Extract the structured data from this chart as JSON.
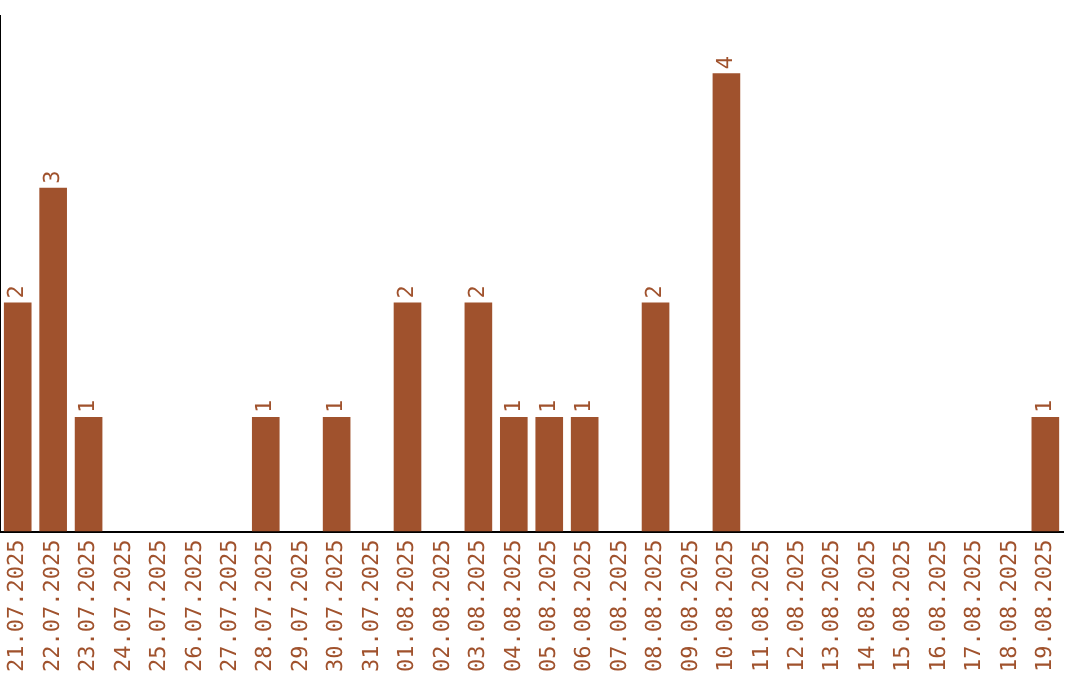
{
  "chart_data": {
    "type": "bar",
    "categories": [
      "21.07.2025",
      "22.07.2025",
      "23.07.2025",
      "24.07.2025",
      "25.07.2025",
      "26.07.2025",
      "27.07.2025",
      "28.07.2025",
      "29.07.2025",
      "30.07.2025",
      "31.07.2025",
      "01.08.2025",
      "02.08.2025",
      "03.08.2025",
      "04.08.2025",
      "05.08.2025",
      "06.08.2025",
      "07.08.2025",
      "08.08.2025",
      "09.08.2025",
      "10.08.2025",
      "11.08.2025",
      "12.08.2025",
      "13.08.2025",
      "14.08.2025",
      "15.08.2025",
      "16.08.2025",
      "17.08.2025",
      "18.08.2025",
      "19.08.2025"
    ],
    "values": [
      2,
      3,
      1,
      0,
      0,
      0,
      0,
      1,
      0,
      1,
      0,
      2,
      0,
      2,
      1,
      1,
      1,
      0,
      2,
      0,
      4,
      0,
      0,
      0,
      0,
      0,
      0,
      0,
      0,
      1
    ],
    "value_labels": [
      "2",
      "3",
      "1",
      null,
      null,
      null,
      null,
      "1",
      null,
      "1",
      null,
      "2",
      null,
      "2",
      "1",
      "1",
      "1",
      null,
      "2",
      null,
      "4",
      null,
      null,
      null,
      null,
      null,
      null,
      null,
      null,
      "1"
    ],
    "color": "#a0522d",
    "tick_labels": "x",
    "grid": false,
    "legend": false
  }
}
